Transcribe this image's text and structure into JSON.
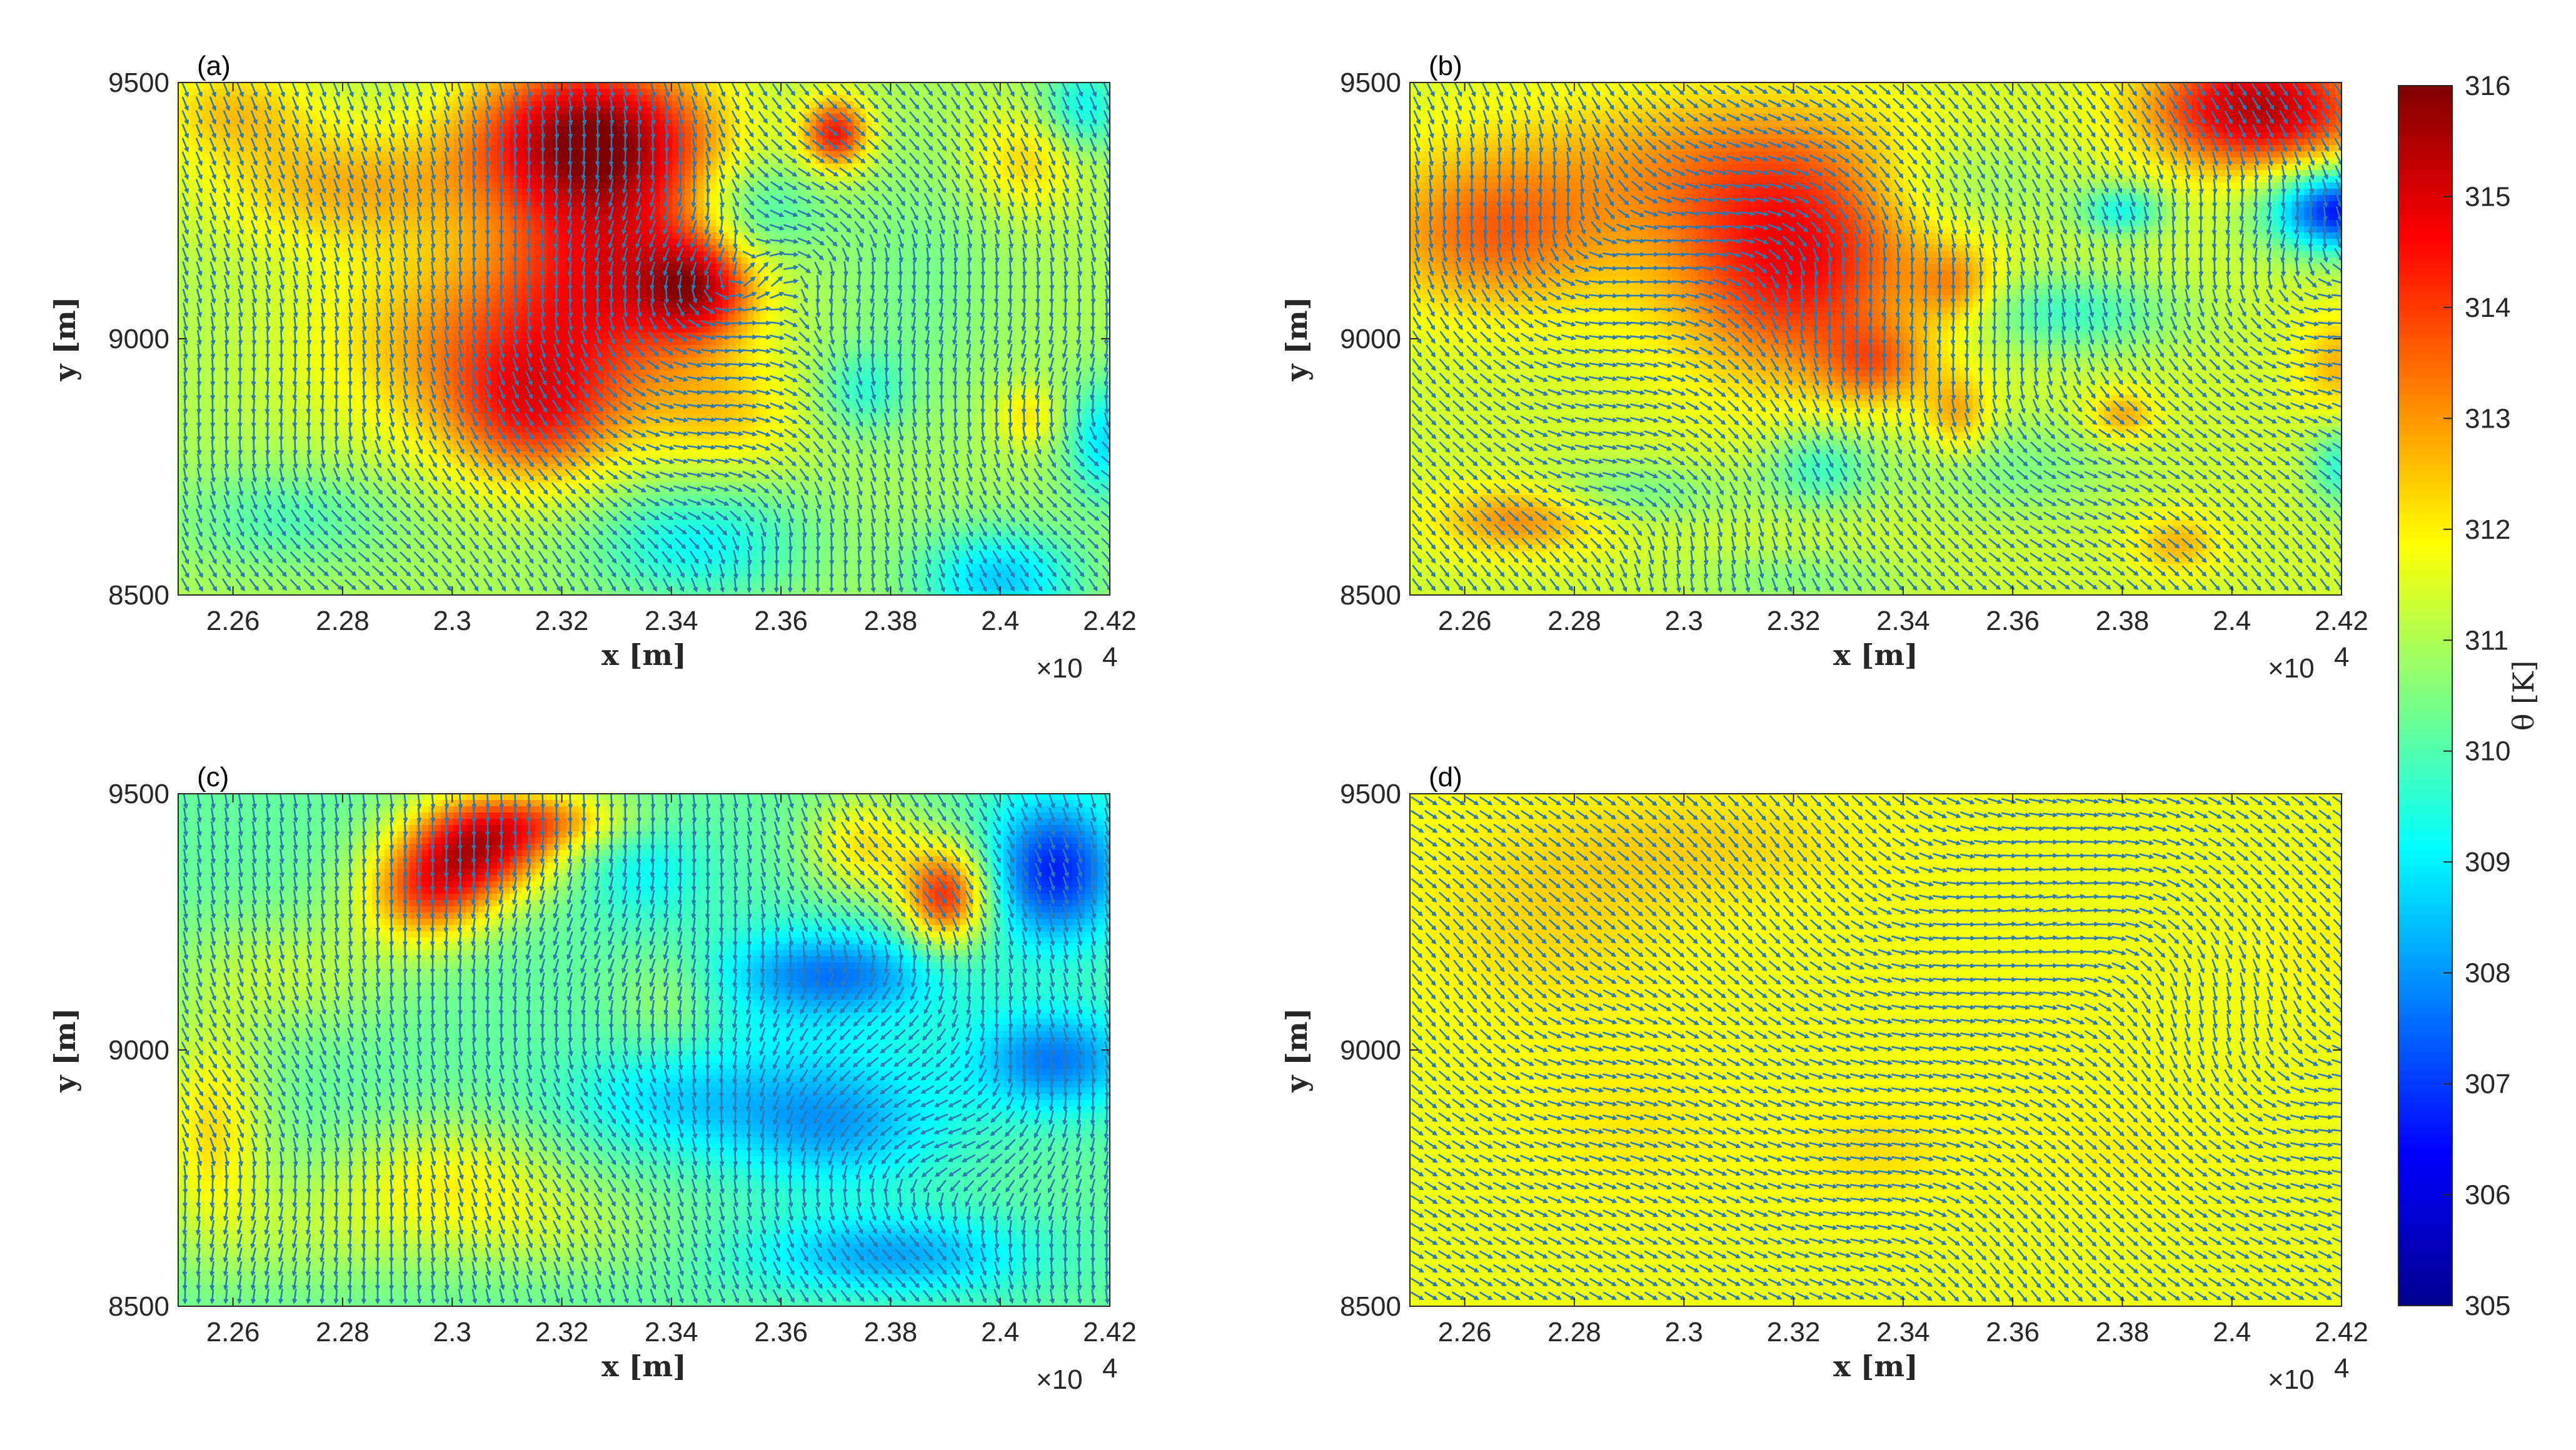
{
  "chart_data": [
    {
      "type": "heatmap",
      "panel_label": "(a)",
      "xlabel": "x [m]",
      "ylabel": "y [m]",
      "x_exponent": "×10",
      "xlim": [
        22500,
        24200
      ],
      "ylim": [
        8500,
        9500
      ],
      "x_ticks": [
        22600,
        22800,
        23000,
        23200,
        23400,
        23600,
        23800,
        24000,
        24200
      ],
      "x_tick_labels": [
        "2.26",
        "2.28",
        "2.3",
        "2.32",
        "2.34",
        "2.36",
        "2.38",
        "2.4",
        "2.42"
      ],
      "y_ticks": [
        8500,
        9000,
        9500
      ],
      "y_tick_labels": [
        "8500",
        "9000",
        "9500"
      ],
      "field": {
        "base": 311.0,
        "blobs": [
          [
            23250,
            9400,
            220,
            150,
            4.4
          ],
          [
            23300,
            9150,
            200,
            220,
            3.0
          ],
          [
            22800,
            9300,
            250,
            120,
            1.6
          ],
          [
            23050,
            9000,
            300,
            200,
            2.0
          ],
          [
            23450,
            9100,
            100,
            100,
            3.0
          ],
          [
            23700,
            9400,
            60,
            70,
            3.4
          ],
          [
            23150,
            8850,
            160,
            140,
            2.4
          ],
          [
            23500,
            8850,
            140,
            120,
            1.2
          ],
          [
            22600,
            9450,
            150,
            100,
            1.4
          ],
          [
            24050,
            9350,
            100,
            100,
            1.4
          ],
          [
            24050,
            8850,
            60,
            60,
            1.2
          ],
          [
            23450,
            8600,
            200,
            120,
            -1.8
          ],
          [
            24000,
            8530,
            150,
            100,
            -2.4
          ],
          [
            24200,
            8800,
            80,
            120,
            -2.2
          ],
          [
            23550,
            9250,
            120,
            100,
            -1.5
          ],
          [
            22700,
            8650,
            200,
            100,
            -1.0
          ],
          [
            23850,
            9100,
            150,
            250,
            -0.6
          ],
          [
            23750,
            8900,
            80,
            80,
            -1.2
          ],
          [
            24150,
            9450,
            80,
            90,
            -1.8
          ]
        ]
      },
      "flow": {
        "u0": 0.2,
        "v0": -0.5,
        "eddies": [
          [
            23300,
            9000,
            300,
            0.8
          ],
          [
            23800,
            9200,
            250,
            -0.7
          ],
          [
            22700,
            8700,
            250,
            0.6
          ],
          [
            24100,
            8800,
            200,
            0.7
          ],
          [
            23600,
            8700,
            220,
            -0.6
          ]
        ]
      }
    },
    {
      "type": "heatmap",
      "panel_label": "(b)",
      "xlabel": "x [m]",
      "ylabel": "y [m]",
      "x_exponent": "×10",
      "xlim": [
        22500,
        24200
      ],
      "ylim": [
        8500,
        9500
      ],
      "x_ticks": [
        22600,
        22800,
        23000,
        23200,
        23400,
        23600,
        23800,
        24000,
        24200
      ],
      "x_tick_labels": [
        "2.26",
        "2.28",
        "2.3",
        "2.32",
        "2.34",
        "2.36",
        "2.38",
        "2.4",
        "2.42"
      ],
      "y_ticks": [
        8500,
        9000,
        9500
      ],
      "y_tick_labels": [
        "8500",
        "9000",
        "9500"
      ],
      "field": {
        "base": 311.4,
        "blobs": [
          [
            23200,
            9150,
            230,
            220,
            3.2
          ],
          [
            22650,
            9200,
            220,
            150,
            2.0
          ],
          [
            23000,
            9350,
            400,
            150,
            1.2
          ],
          [
            24050,
            9450,
            200,
            120,
            4.0
          ],
          [
            23350,
            8950,
            100,
            80,
            1.5
          ],
          [
            23500,
            9100,
            80,
            80,
            1.5
          ],
          [
            23500,
            8850,
            60,
            80,
            1.5
          ],
          [
            22700,
            8650,
            150,
            70,
            1.8
          ],
          [
            23800,
            8850,
            60,
            50,
            1.5
          ],
          [
            24200,
            8950,
            80,
            100,
            1.3
          ],
          [
            23900,
            8600,
            80,
            60,
            1.3
          ],
          [
            24200,
            9250,
            130,
            80,
            -5.0
          ],
          [
            23800,
            9250,
            80,
            50,
            -2.0
          ],
          [
            23700,
            9050,
            200,
            80,
            -1.6
          ],
          [
            23250,
            8750,
            100,
            80,
            -1.6
          ],
          [
            23600,
            8750,
            200,
            100,
            -0.9
          ],
          [
            22900,
            8700,
            200,
            60,
            -1.0
          ],
          [
            23500,
            9300,
            200,
            100,
            -0.8
          ],
          [
            24200,
            8750,
            60,
            80,
            -1.8
          ],
          [
            23200,
            8530,
            200,
            60,
            -0.8
          ]
        ]
      },
      "flow": {
        "u0": 0.3,
        "v0": -0.4,
        "eddies": [
          [
            22700,
            9100,
            250,
            0.8
          ],
          [
            23300,
            9250,
            250,
            -0.7
          ],
          [
            24050,
            9050,
            220,
            0.9
          ],
          [
            23600,
            8800,
            250,
            0.6
          ],
          [
            23000,
            8700,
            200,
            -0.6
          ]
        ]
      }
    },
    {
      "type": "heatmap",
      "panel_label": "(c)",
      "xlabel": "x [m]",
      "ylabel": "y [m]",
      "x_exponent": "×10",
      "xlim": [
        22500,
        24200
      ],
      "ylim": [
        8500,
        9500
      ],
      "x_ticks": [
        22600,
        22800,
        23000,
        23200,
        23400,
        23600,
        23800,
        24000,
        24200
      ],
      "x_tick_labels": [
        "2.26",
        "2.28",
        "2.3",
        "2.32",
        "2.34",
        "2.36",
        "2.38",
        "2.4",
        "2.42"
      ],
      "y_ticks": [
        8500,
        9000,
        9500
      ],
      "y_tick_labels": [
        "8500",
        "9000",
        "9500"
      ],
      "field": {
        "base": 310.2,
        "blobs": [
          [
            23050,
            9400,
            140,
            100,
            4.5
          ],
          [
            22950,
            9300,
            120,
            100,
            3.0
          ],
          [
            23200,
            9450,
            140,
            60,
            2.0
          ],
          [
            23900,
            9300,
            80,
            100,
            4.0
          ],
          [
            23750,
            9400,
            100,
            100,
            2.0
          ],
          [
            22560,
            8850,
            100,
            200,
            2.0
          ],
          [
            23000,
            8750,
            200,
            120,
            1.5
          ],
          [
            22700,
            9150,
            200,
            120,
            1.0
          ],
          [
            23400,
            9100,
            100,
            100,
            0.8
          ],
          [
            23200,
            8650,
            200,
            100,
            0.8
          ],
          [
            22750,
            8650,
            250,
            120,
            0.8
          ],
          [
            24100,
            9350,
            120,
            140,
            -3.5
          ],
          [
            23700,
            9150,
            200,
            80,
            -2.0
          ],
          [
            23700,
            8850,
            200,
            120,
            -1.8
          ],
          [
            23800,
            8600,
            250,
            80,
            -2.0
          ],
          [
            24100,
            8980,
            150,
            100,
            -2.5
          ],
          [
            23400,
            8900,
            200,
            100,
            -1.2
          ],
          [
            23350,
            9350,
            120,
            100,
            -1.0
          ],
          [
            23650,
            9050,
            250,
            200,
            -0.8
          ]
        ]
      },
      "flow": {
        "u0": 0.1,
        "v0": -0.6,
        "eddies": [
          [
            23900,
            9200,
            250,
            -0.8
          ],
          [
            23200,
            9000,
            300,
            0.7
          ],
          [
            22700,
            8800,
            250,
            -0.6
          ],
          [
            23700,
            8700,
            250,
            0.8
          ],
          [
            24100,
            8900,
            200,
            -0.7
          ]
        ]
      }
    },
    {
      "type": "heatmap",
      "panel_label": "(d)",
      "xlabel": "x [m]",
      "ylabel": "y [m]",
      "x_exponent": "×10",
      "xlim": [
        22500,
        24200
      ],
      "ylim": [
        8500,
        9500
      ],
      "x_ticks": [
        22600,
        22800,
        23000,
        23200,
        23400,
        23600,
        23800,
        24000,
        24200
      ],
      "x_tick_labels": [
        "2.26",
        "2.28",
        "2.3",
        "2.32",
        "2.34",
        "2.36",
        "2.38",
        "2.4",
        "2.42"
      ],
      "y_ticks": [
        8500,
        9000,
        9500
      ],
      "y_tick_labels": [
        "8500",
        "9000",
        "9500"
      ],
      "field": {
        "base": 311.7,
        "blobs": [
          [
            22750,
            9250,
            250,
            200,
            0.6
          ],
          [
            23050,
            9400,
            300,
            120,
            0.6
          ],
          [
            23350,
            8800,
            150,
            100,
            0.5
          ],
          [
            22900,
            8850,
            200,
            150,
            0.4
          ],
          [
            23800,
            8800,
            150,
            100,
            0.3
          ],
          [
            24150,
            9200,
            100,
            100,
            0.3
          ],
          [
            23600,
            9000,
            300,
            200,
            0.1
          ]
        ]
      },
      "flow": {
        "u0": 0.5,
        "v0": -0.3,
        "eddies": [
          [
            23300,
            9200,
            300,
            0.5
          ],
          [
            23900,
            9300,
            250,
            -0.6
          ],
          [
            22700,
            9000,
            250,
            0.5
          ],
          [
            24050,
            8900,
            200,
            0.6
          ],
          [
            23500,
            8700,
            250,
            -0.5
          ]
        ]
      }
    }
  ],
  "colorbar": {
    "label": "θ [K]",
    "min": 305,
    "max": 316,
    "ticks": [
      305,
      306,
      307,
      308,
      309,
      310,
      311,
      312,
      313,
      314,
      315,
      316
    ],
    "tick_labels": [
      "305",
      "306",
      "307",
      "308",
      "309",
      "310",
      "311",
      "312",
      "313",
      "314",
      "315",
      "316"
    ],
    "colormap": "jet"
  },
  "colors": {
    "arrow": "#2e7ab0",
    "axis": "#262626"
  }
}
